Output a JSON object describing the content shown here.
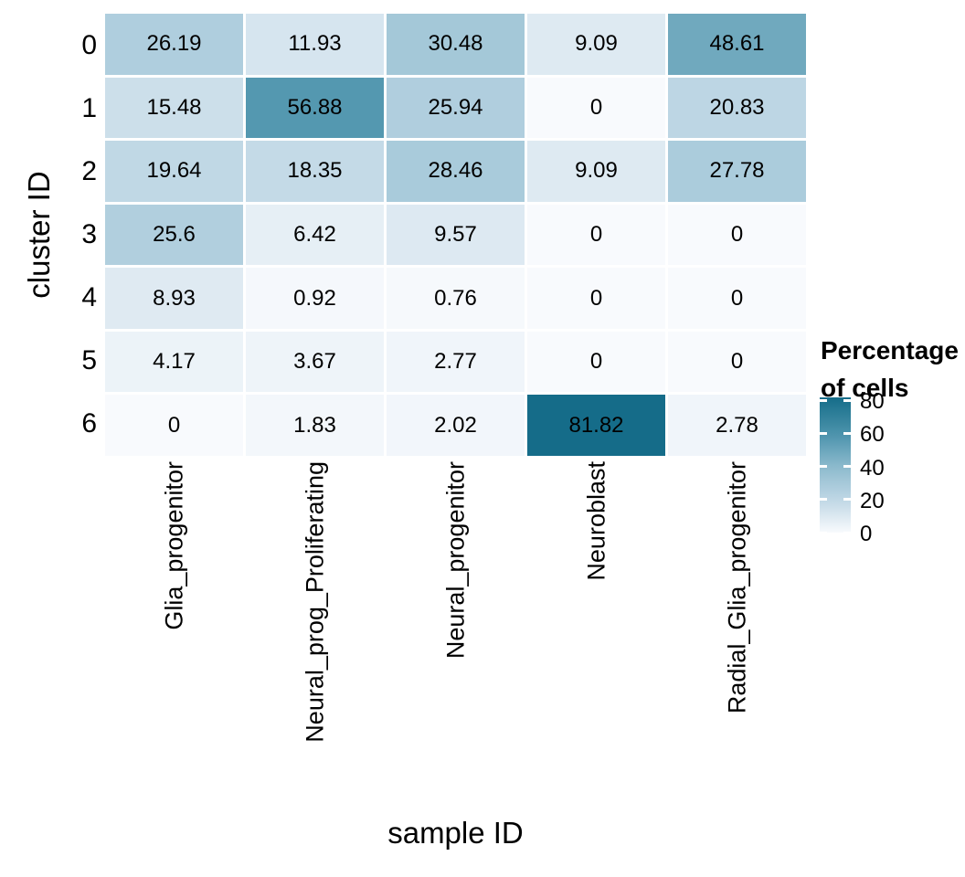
{
  "chart_data": {
    "type": "heatmap",
    "xlabel": "sample ID",
    "ylabel": "cluster ID",
    "categories_x": [
      "Glia_progenitor",
      "Neural_prog_Proliferating",
      "Neural_progenitor",
      "Neuroblast",
      "Radial_Glia_progenitor"
    ],
    "categories_y": [
      "0",
      "1",
      "2",
      "3",
      "4",
      "5",
      "6"
    ],
    "values": [
      [
        26.19,
        11.93,
        30.48,
        9.09,
        48.61
      ],
      [
        15.48,
        56.88,
        25.94,
        0,
        20.83
      ],
      [
        19.64,
        18.35,
        28.46,
        9.09,
        27.78
      ],
      [
        25.6,
        6.42,
        9.57,
        0,
        0
      ],
      [
        8.93,
        0.92,
        0.76,
        0,
        0
      ],
      [
        4.17,
        3.67,
        2.77,
        0,
        0
      ],
      [
        0,
        1.83,
        2.02,
        81.82,
        2.78
      ]
    ],
    "legend": {
      "title_line1": "Percentage",
      "title_line2": "of cells",
      "ticks": [
        80,
        60,
        40,
        20,
        0
      ],
      "domain": [
        0,
        81.82
      ],
      "position": "right"
    },
    "color_scale": {
      "stops": [
        {
          "v": 0,
          "c": "#F8FAFD"
        },
        {
          "v": 20,
          "c": "#BFD7E5"
        },
        {
          "v": 40,
          "c": "#8CBACD"
        },
        {
          "v": 60,
          "c": "#4A92AB"
        },
        {
          "v": 85,
          "c": "#0D6784"
        }
      ],
      "gap_color": "#FFFFFF",
      "text_color": "#000000"
    },
    "grid_on": false
  }
}
